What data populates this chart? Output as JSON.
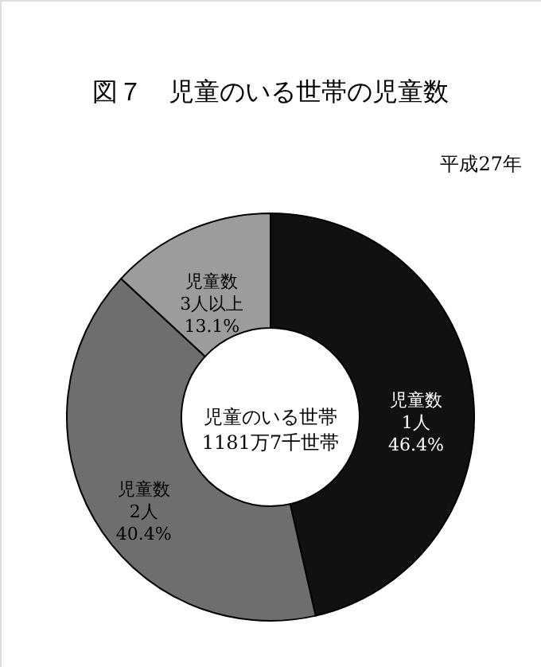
{
  "chart_data": {
    "type": "donut",
    "title": "図７　児童のいる世帯の児童数",
    "subtitle": "平成27年",
    "categories": [
      "児童数\n1人",
      "児童数\n2人",
      "児童数\n3人以上"
    ],
    "values": [
      46.4,
      40.4,
      13.1
    ],
    "colors": [
      "#111111",
      "#6e6e6e",
      "#9c9c9c"
    ],
    "value_labels": [
      "46.4%",
      "40.4%",
      "13.1%"
    ],
    "annotations": [
      "児童のいる世帯\n1181万7千世帯"
    ]
  }
}
